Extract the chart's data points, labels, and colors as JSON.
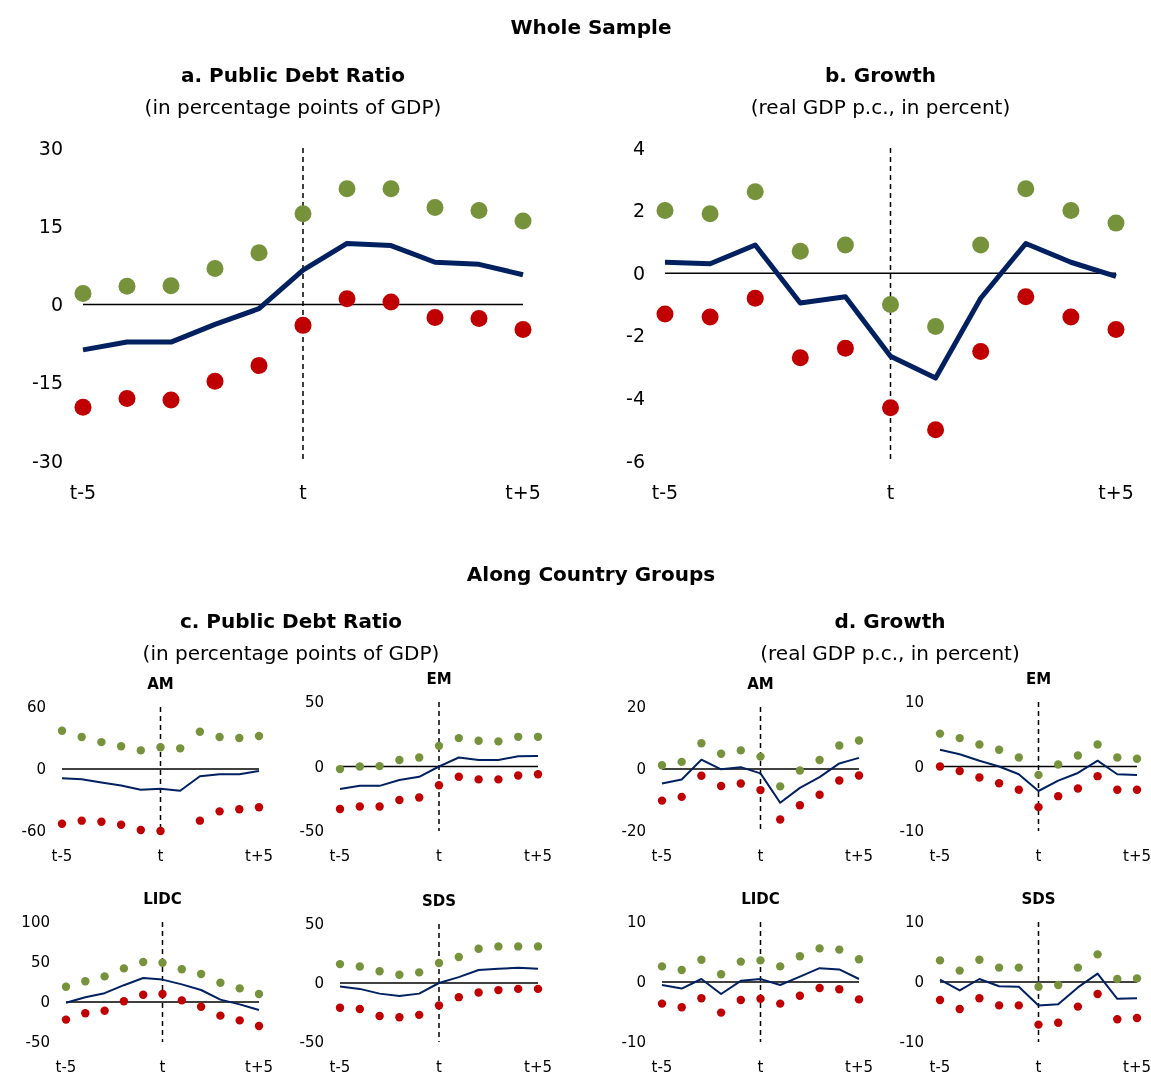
{
  "chart_data": [
    {
      "type": "other",
      "title": "Whole Sample"
    },
    {
      "type": "line",
      "title": "a. Public Debt Ratio",
      "subtitle": "(in percentage points of GDP)",
      "categories": [
        "t-5",
        null,
        null,
        null,
        null,
        "t",
        null,
        null,
        null,
        null,
        "t+5"
      ],
      "ylim": [
        -30,
        30
      ],
      "yticks": [
        -30,
        -15,
        0,
        15,
        30
      ],
      "ref_lines": [
        {
          "axis": "x",
          "value": "t",
          "line_style": "dashed",
          "color": "#000000"
        },
        {
          "axis": "y",
          "value": 0,
          "color": "#000000"
        }
      ],
      "series": [
        {
          "type": "line",
          "color": "#002060",
          "values": [
            -8.7,
            -7.2,
            -7.2,
            -3.8,
            -0.8,
            6.6,
            11.7,
            11.3,
            8.1,
            7.7,
            5.7
          ]
        },
        {
          "type": "scatter",
          "marker": "circle",
          "color": "#76933c",
          "values": [
            2.1,
            3.5,
            3.6,
            6.9,
            9.9,
            17.4,
            22.2,
            22.2,
            18.6,
            18,
            16
          ]
        },
        {
          "type": "scatter",
          "marker": "circle",
          "color": "#c00000",
          "values": [
            -19.7,
            -18,
            -18.3,
            -14.7,
            -11.7,
            -4,
            1.1,
            0.5,
            -2.5,
            -2.7,
            -4.8
          ]
        }
      ]
    },
    {
      "type": "line",
      "title": "b. Growth",
      "subtitle": "(real GDP p.c., in percent)",
      "categories": [
        "t-5",
        null,
        null,
        null,
        null,
        "t",
        null,
        null,
        null,
        null,
        "t+5"
      ],
      "ylim": [
        -6,
        4
      ],
      "yticks": [
        -6,
        -4,
        -2,
        0,
        2,
        4
      ],
      "ref_lines": [
        {
          "axis": "x",
          "value": "t",
          "line_style": "dashed",
          "color": "#000000"
        },
        {
          "axis": "y",
          "value": 0,
          "color": "#000000"
        }
      ],
      "series": [
        {
          "type": "line",
          "color": "#002060",
          "values": [
            0.35,
            0.3,
            0.9,
            -0.95,
            -0.75,
            -2.65,
            -3.35,
            -0.8,
            0.95,
            0.35,
            -0.1
          ]
        },
        {
          "type": "scatter",
          "marker": "circle",
          "color": "#76933c",
          "values": [
            2,
            1.9,
            2.6,
            0.7,
            0.9,
            -1,
            -1.7,
            0.9,
            2.7,
            2,
            1.6
          ]
        },
        {
          "type": "scatter",
          "marker": "circle",
          "color": "#c00000",
          "values": [
            -1.3,
            -1.4,
            -0.8,
            -2.7,
            -2.4,
            -4.3,
            -5,
            -2.5,
            -0.75,
            -1.4,
            -1.8
          ]
        }
      ]
    },
    {
      "type": "other",
      "title": "Along Country Groups"
    },
    {
      "type": "other",
      "title": "c. Public Debt Ratio",
      "subtitle": "(in percentage points of GDP)"
    },
    {
      "type": "other",
      "title": "d. Growth",
      "subtitle": "(real GDP p.c., in percent)"
    },
    {
      "type": "line",
      "title": "AM",
      "categories": [
        "t-5",
        null,
        null,
        null,
        null,
        "t",
        null,
        null,
        null,
        null,
        "t+5"
      ],
      "ylim": [
        -60,
        60
      ],
      "yticks": [
        -60,
        0,
        60
      ],
      "ref_lines": [
        {
          "axis": "x",
          "value": "t",
          "line_style": "dashed",
          "color": "#000000"
        },
        {
          "axis": "y",
          "value": 0,
          "color": "#000000"
        }
      ],
      "series": [
        {
          "type": "line",
          "color": "#002060",
          "values": [
            -9,
            -10,
            -13,
            -16,
            -20,
            -19,
            -21,
            -7,
            -5,
            -5,
            -2
          ]
        },
        {
          "type": "scatter",
          "marker": "circle",
          "color": "#76933c",
          "values": [
            37,
            31,
            26,
            22,
            18,
            21,
            20,
            36,
            31,
            30,
            32
          ]
        },
        {
          "type": "scatter",
          "marker": "circle",
          "color": "#c00000",
          "values": [
            -53,
            -50,
            -51,
            -54,
            -59,
            -60,
            null,
            -50,
            -41,
            -39,
            -37
          ]
        }
      ]
    },
    {
      "type": "line",
      "title": "EM",
      "categories": [
        "t-5",
        null,
        null,
        null,
        null,
        "t",
        null,
        null,
        null,
        null,
        "t+5"
      ],
      "ylim": [
        -50,
        50
      ],
      "yticks": [
        -50,
        0,
        50
      ],
      "ref_lines": [
        {
          "axis": "x",
          "value": "t",
          "line_style": "dashed",
          "color": "#000000"
        },
        {
          "axis": "y",
          "value": 0,
          "color": "#000000"
        }
      ],
      "series": [
        {
          "type": "line",
          "color": "#002060",
          "values": [
            -17.5,
            -15,
            -15,
            -10.5,
            -8,
            0,
            7,
            5,
            5,
            8,
            8.2
          ]
        },
        {
          "type": "scatter",
          "marker": "circle",
          "color": "#76933c",
          "values": [
            -2,
            0,
            0.3,
            5,
            7,
            16,
            22,
            20,
            19.5,
            23,
            23
          ]
        },
        {
          "type": "scatter",
          "marker": "circle",
          "color": "#c00000",
          "values": [
            -33,
            -31,
            -31,
            -26,
            -24,
            -14.5,
            -8,
            -10,
            -10,
            -7,
            -6
          ]
        }
      ]
    },
    {
      "type": "line",
      "title": "AM",
      "categories": [
        "t-5",
        null,
        null,
        null,
        null,
        "t",
        null,
        null,
        null,
        null,
        "t+5"
      ],
      "ylim": [
        -20,
        20
      ],
      "yticks": [
        -20,
        0,
        20
      ],
      "ref_lines": [
        {
          "axis": "x",
          "value": "t",
          "line_style": "dashed",
          "color": "#000000"
        },
        {
          "axis": "y",
          "value": 0,
          "color": "#000000"
        }
      ],
      "series": [
        {
          "type": "line",
          "color": "#002060",
          "values": [
            -4.7,
            -3.4,
            3,
            -0.1,
            0.6,
            -1.4,
            -10.9,
            -6.1,
            -2.6,
            1.8,
            3.6
          ]
        },
        {
          "type": "scatter",
          "marker": "circle",
          "color": "#76933c",
          "values": [
            1.2,
            2.3,
            8.3,
            4.9,
            6,
            4,
            -5.6,
            -0.5,
            2.9,
            7.6,
            9.2
          ]
        },
        {
          "type": "scatter",
          "marker": "circle",
          "color": "#c00000",
          "values": [
            -10.2,
            -9,
            -2.2,
            -5.5,
            -4.7,
            -6.8,
            -16.3,
            -11.7,
            -8.3,
            -3.7,
            -2.1
          ]
        }
      ]
    },
    {
      "type": "line",
      "title": "EM",
      "categories": [
        "t-5",
        null,
        null,
        null,
        null,
        "t",
        null,
        null,
        null,
        null,
        "t+5"
      ],
      "ylim": [
        -10,
        10
      ],
      "yticks": [
        -10,
        0,
        10
      ],
      "ref_lines": [
        {
          "axis": "x",
          "value": "t",
          "line_style": "dashed",
          "color": "#000000"
        },
        {
          "axis": "y",
          "value": 0,
          "color": "#000000"
        }
      ],
      "series": [
        {
          "type": "line",
          "color": "#002060",
          "values": [
            2.6,
            1.9,
            0.9,
            0,
            -1.2,
            -3.8,
            -2.2,
            -1,
            0.9,
            -1.2,
            -1.3
          ]
        },
        {
          "type": "scatter",
          "marker": "circle",
          "color": "#76933c",
          "values": [
            5.1,
            4.4,
            3.4,
            2.6,
            1.4,
            -1.3,
            0.3,
            1.7,
            3.4,
            1.4,
            1.2
          ]
        },
        {
          "type": "scatter",
          "marker": "circle",
          "color": "#c00000",
          "values": [
            0,
            -0.7,
            -1.7,
            -2.6,
            -3.6,
            -6.3,
            -4.6,
            -3.4,
            -1.5,
            -3.6,
            -3.6
          ]
        }
      ]
    },
    {
      "type": "line",
      "title": "LIDC",
      "categories": [
        "t-5",
        null,
        null,
        null,
        null,
        "t",
        null,
        null,
        null,
        null,
        "t+5"
      ],
      "ylim": [
        -50,
        100
      ],
      "yticks": [
        -50,
        0,
        50,
        100
      ],
      "ref_lines": [
        {
          "axis": "x",
          "value": "t",
          "line_style": "dashed",
          "color": "#000000"
        },
        {
          "axis": "y",
          "value": 0,
          "color": "#000000"
        }
      ],
      "series": [
        {
          "type": "line",
          "color": "#002060",
          "values": [
            -1,
            6,
            11,
            21,
            30,
            28,
            22,
            15,
            3,
            -3,
            -10
          ]
        },
        {
          "type": "scatter",
          "marker": "circle",
          "color": "#76933c",
          "values": [
            19,
            26,
            32,
            42,
            50,
            49,
            41,
            35,
            24,
            17,
            10
          ]
        },
        {
          "type": "scatter",
          "marker": "circle",
          "color": "#c00000",
          "values": [
            -22,
            -14,
            -11,
            1,
            9,
            10,
            2,
            -6,
            -17,
            -23,
            -30
          ]
        }
      ]
    },
    {
      "type": "line",
      "title": "SDS",
      "categories": [
        "t-5",
        null,
        null,
        null,
        null,
        "t",
        null,
        null,
        null,
        null,
        "t+5"
      ],
      "ylim": [
        -50,
        50
      ],
      "yticks": [
        -50,
        0,
        50
      ],
      "ref_lines": [
        {
          "axis": "x",
          "value": "t",
          "line_style": "dashed",
          "color": "#000000"
        },
        {
          "axis": "y",
          "value": 0,
          "color": "#000000"
        }
      ],
      "series": [
        {
          "type": "line",
          "color": "#002060",
          "values": [
            -3,
            -5,
            -9,
            -11,
            -9,
            0,
            5,
            11,
            12,
            13,
            12
          ]
        },
        {
          "type": "scatter",
          "marker": "circle",
          "color": "#76933c",
          "values": [
            16,
            14,
            10,
            7,
            9,
            17,
            22,
            29,
            31,
            31,
            31
          ]
        },
        {
          "type": "scatter",
          "marker": "circle",
          "color": "#c00000",
          "values": [
            -21,
            -22,
            -28,
            -29,
            -27,
            -19,
            -12,
            -8,
            -6,
            -5,
            -5
          ]
        }
      ]
    },
    {
      "type": "line",
      "title": "LIDC",
      "categories": [
        "t-5",
        null,
        null,
        null,
        null,
        "t",
        null,
        null,
        null,
        null,
        "t+5"
      ],
      "ylim": [
        -10,
        10
      ],
      "yticks": [
        -10,
        0,
        10
      ],
      "ref_lines": [
        {
          "axis": "x",
          "value": "t",
          "line_style": "dashed",
          "color": "#000000"
        },
        {
          "axis": "y",
          "value": 0,
          "color": "#000000"
        }
      ],
      "series": [
        {
          "type": "line",
          "color": "#002060",
          "values": [
            -0.5,
            -1.1,
            0.5,
            -2,
            0.2,
            0.5,
            -0.5,
            0.9,
            2.3,
            2.1,
            0.5
          ]
        },
        {
          "type": "scatter",
          "marker": "circle",
          "color": "#76933c",
          "values": [
            2.6,
            2,
            3.7,
            1.3,
            3.4,
            3.6,
            2.6,
            4.3,
            5.6,
            5.4,
            3.8
          ]
        },
        {
          "type": "scatter",
          "marker": "circle",
          "color": "#c00000",
          "values": [
            -3.6,
            -4.2,
            -2.7,
            -5.1,
            -3,
            -2.8,
            -3.6,
            -2.3,
            -1,
            -1.2,
            -2.9
          ]
        }
      ]
    },
    {
      "type": "line",
      "title": "SDS",
      "categories": [
        "t-5",
        null,
        null,
        null,
        null,
        "t",
        null,
        null,
        null,
        null,
        "t+5"
      ],
      "ylim": [
        -10,
        10
      ],
      "yticks": [
        -10,
        0,
        10
      ],
      "ref_lines": [
        {
          "axis": "x",
          "value": "t",
          "line_style": "dashed",
          "color": "#000000"
        },
        {
          "axis": "y",
          "value": 0,
          "color": "#000000"
        }
      ],
      "series": [
        {
          "type": "line",
          "color": "#002060",
          "values": [
            0.4,
            -1.4,
            0.5,
            -0.7,
            -0.8,
            -3.9,
            -3.7,
            -0.9,
            1.4,
            -2.8,
            -2.7
          ]
        },
        {
          "type": "scatter",
          "marker": "circle",
          "color": "#76933c",
          "values": [
            3.6,
            1.9,
            3.7,
            2.4,
            2.4,
            -0.8,
            -0.5,
            2.4,
            4.6,
            0.5,
            0.6
          ]
        },
        {
          "type": "scatter",
          "marker": "circle",
          "color": "#c00000",
          "values": [
            -3,
            -4.5,
            -2.7,
            -3.9,
            -3.9,
            -7.1,
            -6.8,
            -4.1,
            -2,
            -6.2,
            -6
          ]
        }
      ]
    }
  ]
}
